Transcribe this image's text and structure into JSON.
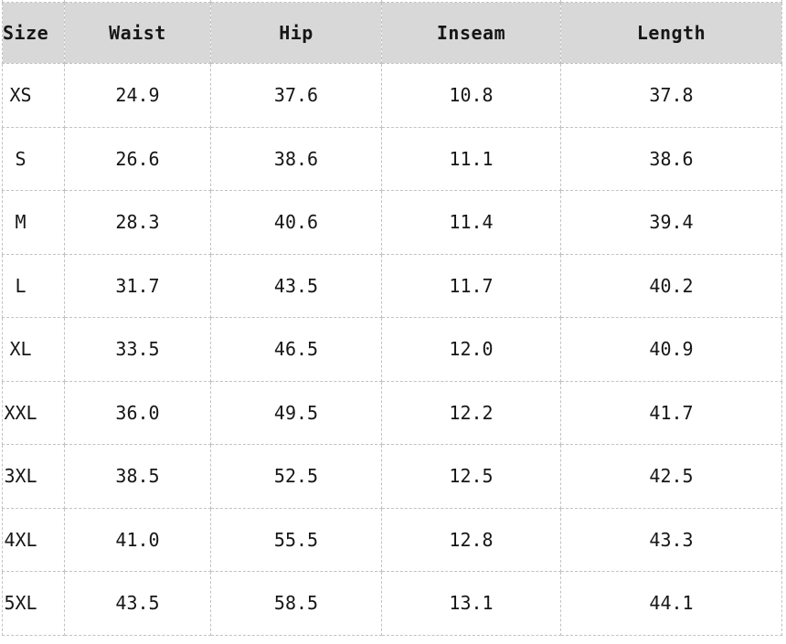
{
  "chart_data": {
    "type": "table",
    "columns": [
      "Size",
      "Waist",
      "Hip",
      "Inseam",
      "Length"
    ],
    "rows": [
      [
        "XS",
        "24.9",
        "37.6",
        "10.8",
        "37.8"
      ],
      [
        "S",
        "26.6",
        "38.6",
        "11.1",
        "38.6"
      ],
      [
        "M",
        "28.3",
        "40.6",
        "11.4",
        "39.4"
      ],
      [
        "L",
        "31.7",
        "43.5",
        "11.7",
        "40.2"
      ],
      [
        "XL",
        "33.5",
        "46.5",
        "12.0",
        "40.9"
      ],
      [
        "XXL",
        "36.0",
        "49.5",
        "12.2",
        "41.7"
      ],
      [
        "3XL",
        "38.5",
        "52.5",
        "12.5",
        "42.5"
      ],
      [
        "4XL",
        "41.0",
        "55.5",
        "12.8",
        "43.3"
      ],
      [
        "5XL",
        "43.5",
        "58.5",
        "13.1",
        "44.1"
      ]
    ],
    "layout": {
      "header_row": true,
      "grid": "dashed",
      "value_alignment": "center"
    }
  },
  "colors": {
    "header-bg": "#d8d8d8",
    "border-color": "#c2c2c2",
    "text-color": "#161616",
    "page-bg": "#ffffff"
  }
}
